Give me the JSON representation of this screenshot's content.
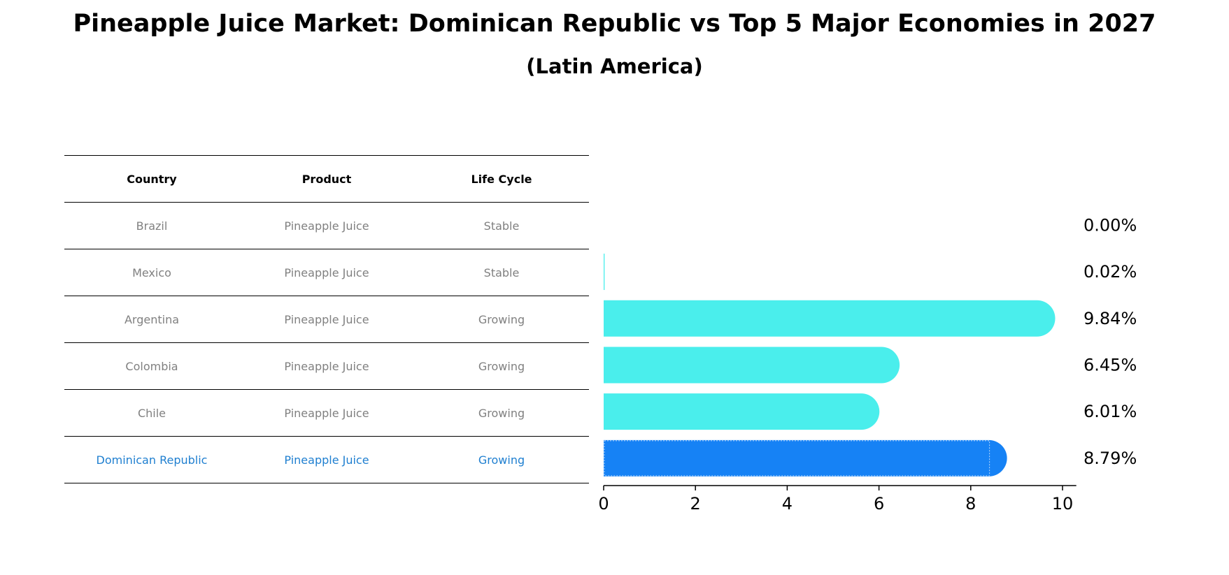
{
  "title": "Pineapple Juice Market: Dominican Republic vs Top 5 Major Economies in 2027",
  "subtitle": "(Latin America)",
  "table": {
    "headers": [
      "Country",
      "Product",
      "Life Cycle"
    ],
    "rows": [
      {
        "country": "Brazil",
        "product": "Pineapple Juice",
        "life_cycle": "Stable"
      },
      {
        "country": "Mexico",
        "product": "Pineapple Juice",
        "life_cycle": "Stable"
      },
      {
        "country": "Argentina",
        "product": "Pineapple Juice",
        "life_cycle": "Growing"
      },
      {
        "country": "Colombia",
        "product": "Pineapple Juice",
        "life_cycle": "Growing"
      },
      {
        "country": "Chile",
        "product": "Pineapple Juice",
        "life_cycle": "Growing"
      },
      {
        "country": "Dominican Republic",
        "product": "Pineapple Juice",
        "life_cycle": "Growing"
      }
    ]
  },
  "chart_data": {
    "type": "bar",
    "orientation": "horizontal",
    "categories": [
      "Brazil",
      "Mexico",
      "Argentina",
      "Colombia",
      "Chile",
      "Dominican Republic"
    ],
    "values": [
      0.0,
      0.02,
      9.84,
      6.45,
      6.01,
      8.79
    ],
    "value_labels": [
      "0.00%",
      "0.02%",
      "9.84%",
      "6.45%",
      "6.01%",
      "8.79%"
    ],
    "xlim": [
      0,
      10.3
    ],
    "xticks": [
      0,
      2,
      4,
      6,
      8,
      10
    ],
    "highlight": "Dominican Republic",
    "colors": {
      "default": "#4aeeec",
      "highlight": "#1682f5"
    }
  }
}
